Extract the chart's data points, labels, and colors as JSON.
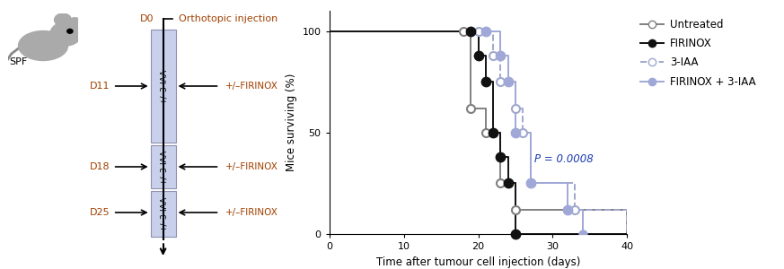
{
  "xlabel": "Time after tumour cell injection (days)",
  "ylabel": "Mice surviving (%)",
  "xlim": [
    0,
    40
  ],
  "ylim": [
    0,
    110
  ],
  "yticks": [
    0,
    50,
    100
  ],
  "xticks": [
    0,
    10,
    20,
    30,
    40
  ],
  "p_text": "P = 0.0008",
  "p_x": 27.5,
  "p_y": 37,
  "unt_color": "#808080",
  "fir_color": "#111111",
  "iaa_color": "#a0a8cc",
  "combo_color": "#a0a8d8",
  "box_color": "#c8d0ec",
  "box_edge_color": "#9090b0",
  "label_color": "#a04000",
  "untreated_x": [
    0,
    18,
    19,
    21,
    23,
    25,
    40
  ],
  "untreated_y": [
    100,
    100,
    62,
    50,
    25,
    12,
    0
  ],
  "untreated_markers_x": [
    18,
    19,
    21,
    23,
    25
  ],
  "untreated_markers_y": [
    100,
    62,
    50,
    25,
    12
  ],
  "firinox_x": [
    0,
    19,
    20,
    21,
    22,
    23,
    24,
    25,
    40
  ],
  "firinox_y": [
    100,
    100,
    88,
    75,
    50,
    38,
    25,
    0,
    0
  ],
  "firinox_markers_x": [
    19,
    20,
    21,
    22,
    23,
    24,
    25
  ],
  "firinox_markers_y": [
    100,
    88,
    75,
    50,
    38,
    25,
    0
  ],
  "iaa_x": [
    0,
    20,
    22,
    23,
    25,
    26,
    27,
    33,
    40
  ],
  "iaa_y": [
    100,
    100,
    88,
    75,
    62,
    50,
    25,
    12,
    0
  ],
  "iaa_markers_x": [
    20,
    22,
    23,
    25,
    26,
    27,
    33
  ],
  "iaa_markers_y": [
    100,
    88,
    75,
    62,
    50,
    25,
    12
  ],
  "combo_x": [
    0,
    21,
    23,
    24,
    25,
    27,
    32,
    34,
    40
  ],
  "combo_y": [
    100,
    100,
    88,
    75,
    50,
    25,
    12,
    0,
    0
  ],
  "combo_markers_x": [
    21,
    23,
    24,
    25,
    27,
    32
  ],
  "combo_markers_y": [
    100,
    88,
    75,
    50,
    25,
    12
  ],
  "combo_tick_x": 34,
  "combo_tick_y": 0
}
